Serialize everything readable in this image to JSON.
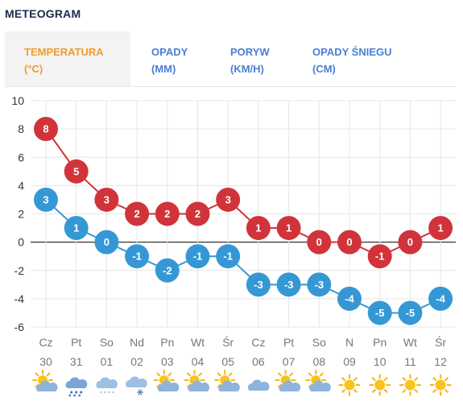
{
  "heading": "METEOGRAM",
  "tabs": [
    {
      "line1": "TEMPERATURA",
      "line2": "(°C)",
      "active": true
    },
    {
      "line1": "OPADY",
      "line2": "(MM)",
      "active": false
    },
    {
      "line1": "PORYW",
      "line2": "(KM/H)",
      "active": false
    },
    {
      "line1": "OPADY ŚNIEGU",
      "line2": "(CM)",
      "active": false
    }
  ],
  "colors": {
    "max": "#d0343a",
    "min": "#3598d5",
    "grid": "#e6e6e6",
    "zero": "#333333"
  },
  "chart_data": {
    "type": "line",
    "title": "",
    "xlabel": "",
    "ylabel": "",
    "ylim": [
      -6,
      10
    ],
    "yticks": [
      -6,
      -4,
      -2,
      0,
      2,
      4,
      6,
      8,
      10
    ],
    "grid": true,
    "days": [
      "Cz",
      "Pt",
      "So",
      "Nd",
      "Pn",
      "Wt",
      "Śr",
      "Cz",
      "Pt",
      "So",
      "N",
      "Pn",
      "Wt",
      "Śr"
    ],
    "dates": [
      "30",
      "31",
      "01",
      "02",
      "03",
      "04",
      "05",
      "06",
      "07",
      "08",
      "09",
      "10",
      "11",
      "12"
    ],
    "series": [
      {
        "key": "max",
        "values": [
          8,
          5,
          3,
          2,
          2,
          2,
          3,
          1,
          1,
          0,
          0,
          -1,
          0,
          1
        ]
      },
      {
        "key": "min",
        "values": [
          3,
          1,
          0,
          -1,
          -2,
          -1,
          -1,
          -3,
          -3,
          -3,
          -4,
          -5,
          -5,
          -4
        ]
      }
    ],
    "weather_icons": [
      "sun-cloud-icon",
      "cloud-rain-icon",
      "cloud-snow-icon",
      "cloud-snowflake-icon",
      "sun-cloud-icon",
      "sun-cloud-icon",
      "sun-cloud-icon",
      "cloud-icon",
      "sun-cloud-icon",
      "sun-cloud-icon",
      "sun-icon",
      "sun-icon",
      "sun-icon",
      "sun-icon"
    ]
  }
}
